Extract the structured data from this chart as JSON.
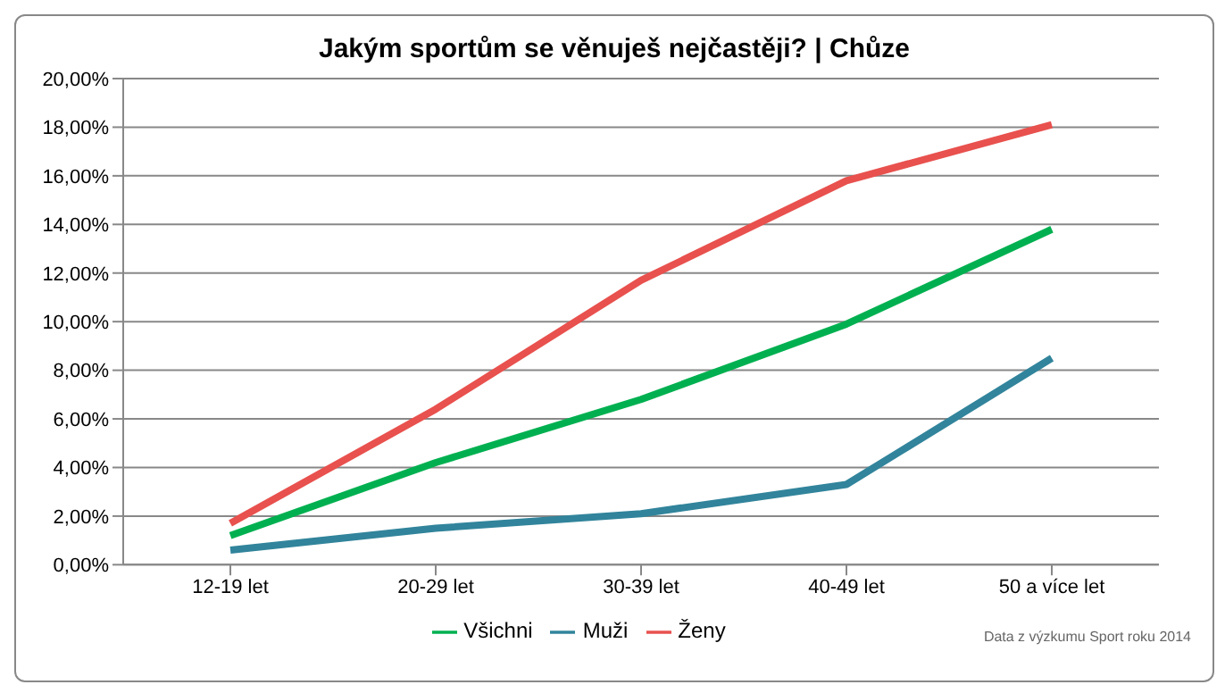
{
  "chart_data": {
    "type": "line",
    "title": "Jakým sportům se věnuješ nejčastěji? | Chůze",
    "categories": [
      "12-19 let",
      "20-29 let",
      "30-39 let",
      "40-49 let",
      "50 a více let"
    ],
    "series": [
      {
        "name": "Všichni",
        "color": "#00b050",
        "values": [
          1.2,
          4.2,
          6.8,
          9.9,
          13.8
        ]
      },
      {
        "name": "Muži",
        "color": "#31849b",
        "values": [
          0.6,
          1.5,
          2.1,
          3.3,
          8.5
        ]
      },
      {
        "name": "Ženy",
        "color": "#e8514e",
        "values": [
          1.7,
          6.4,
          11.7,
          15.8,
          18.1
        ]
      }
    ],
    "ylim": [
      0,
      20
    ],
    "yticks": [
      {
        "value": 0,
        "label": "0,00%"
      },
      {
        "value": 2,
        "label": "2,00%"
      },
      {
        "value": 4,
        "label": "4,00%"
      },
      {
        "value": 6,
        "label": "6,00%"
      },
      {
        "value": 8,
        "label": "8,00%"
      },
      {
        "value": 10,
        "label": "10,00%"
      },
      {
        "value": 12,
        "label": "12,00%"
      },
      {
        "value": 14,
        "label": "14,00%"
      },
      {
        "value": 16,
        "label": "16,00%"
      },
      {
        "value": 18,
        "label": "18,00%"
      },
      {
        "value": 20,
        "label": "20,00%"
      }
    ],
    "grid": "y",
    "legend": "bottom",
    "marker": "none",
    "line_style": "solid",
    "annotations": [
      "Data z výzkumu Sport roku 2014"
    ]
  }
}
